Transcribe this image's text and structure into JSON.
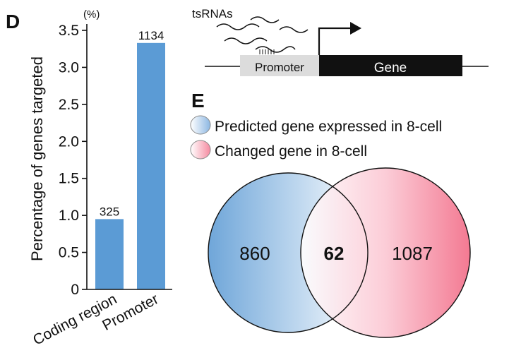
{
  "panel_d": {
    "label": "D",
    "unit": "(%)",
    "chart_data": {
      "type": "bar",
      "categories": [
        "Coding region",
        "Promoter"
      ],
      "values": [
        0.95,
        3.33
      ],
      "data_labels": [
        "325",
        "1134"
      ],
      "ylabel": "Percentage of genes targeted",
      "ylim": [
        0,
        3.5
      ],
      "yticks": [
        "0",
        "0.5",
        "1.0",
        "1.5",
        "2.0",
        "2.5",
        "3.0",
        "3.5"
      ],
      "bar_color": "#5b9bd5",
      "grid": false
    }
  },
  "schematic": {
    "small_rna_label": "tsRNAs",
    "promoter_label": "Promoter",
    "gene_label": "Gene"
  },
  "panel_e": {
    "label": "E",
    "legend": [
      {
        "text": "Predicted gene expressed in 8-cell",
        "color": "#5b9bd5"
      },
      {
        "text": "Changed gene in 8-cell",
        "color": "#f26b86"
      }
    ],
    "venn": {
      "left_only": "860",
      "overlap": "62",
      "right_only": "1087"
    }
  }
}
